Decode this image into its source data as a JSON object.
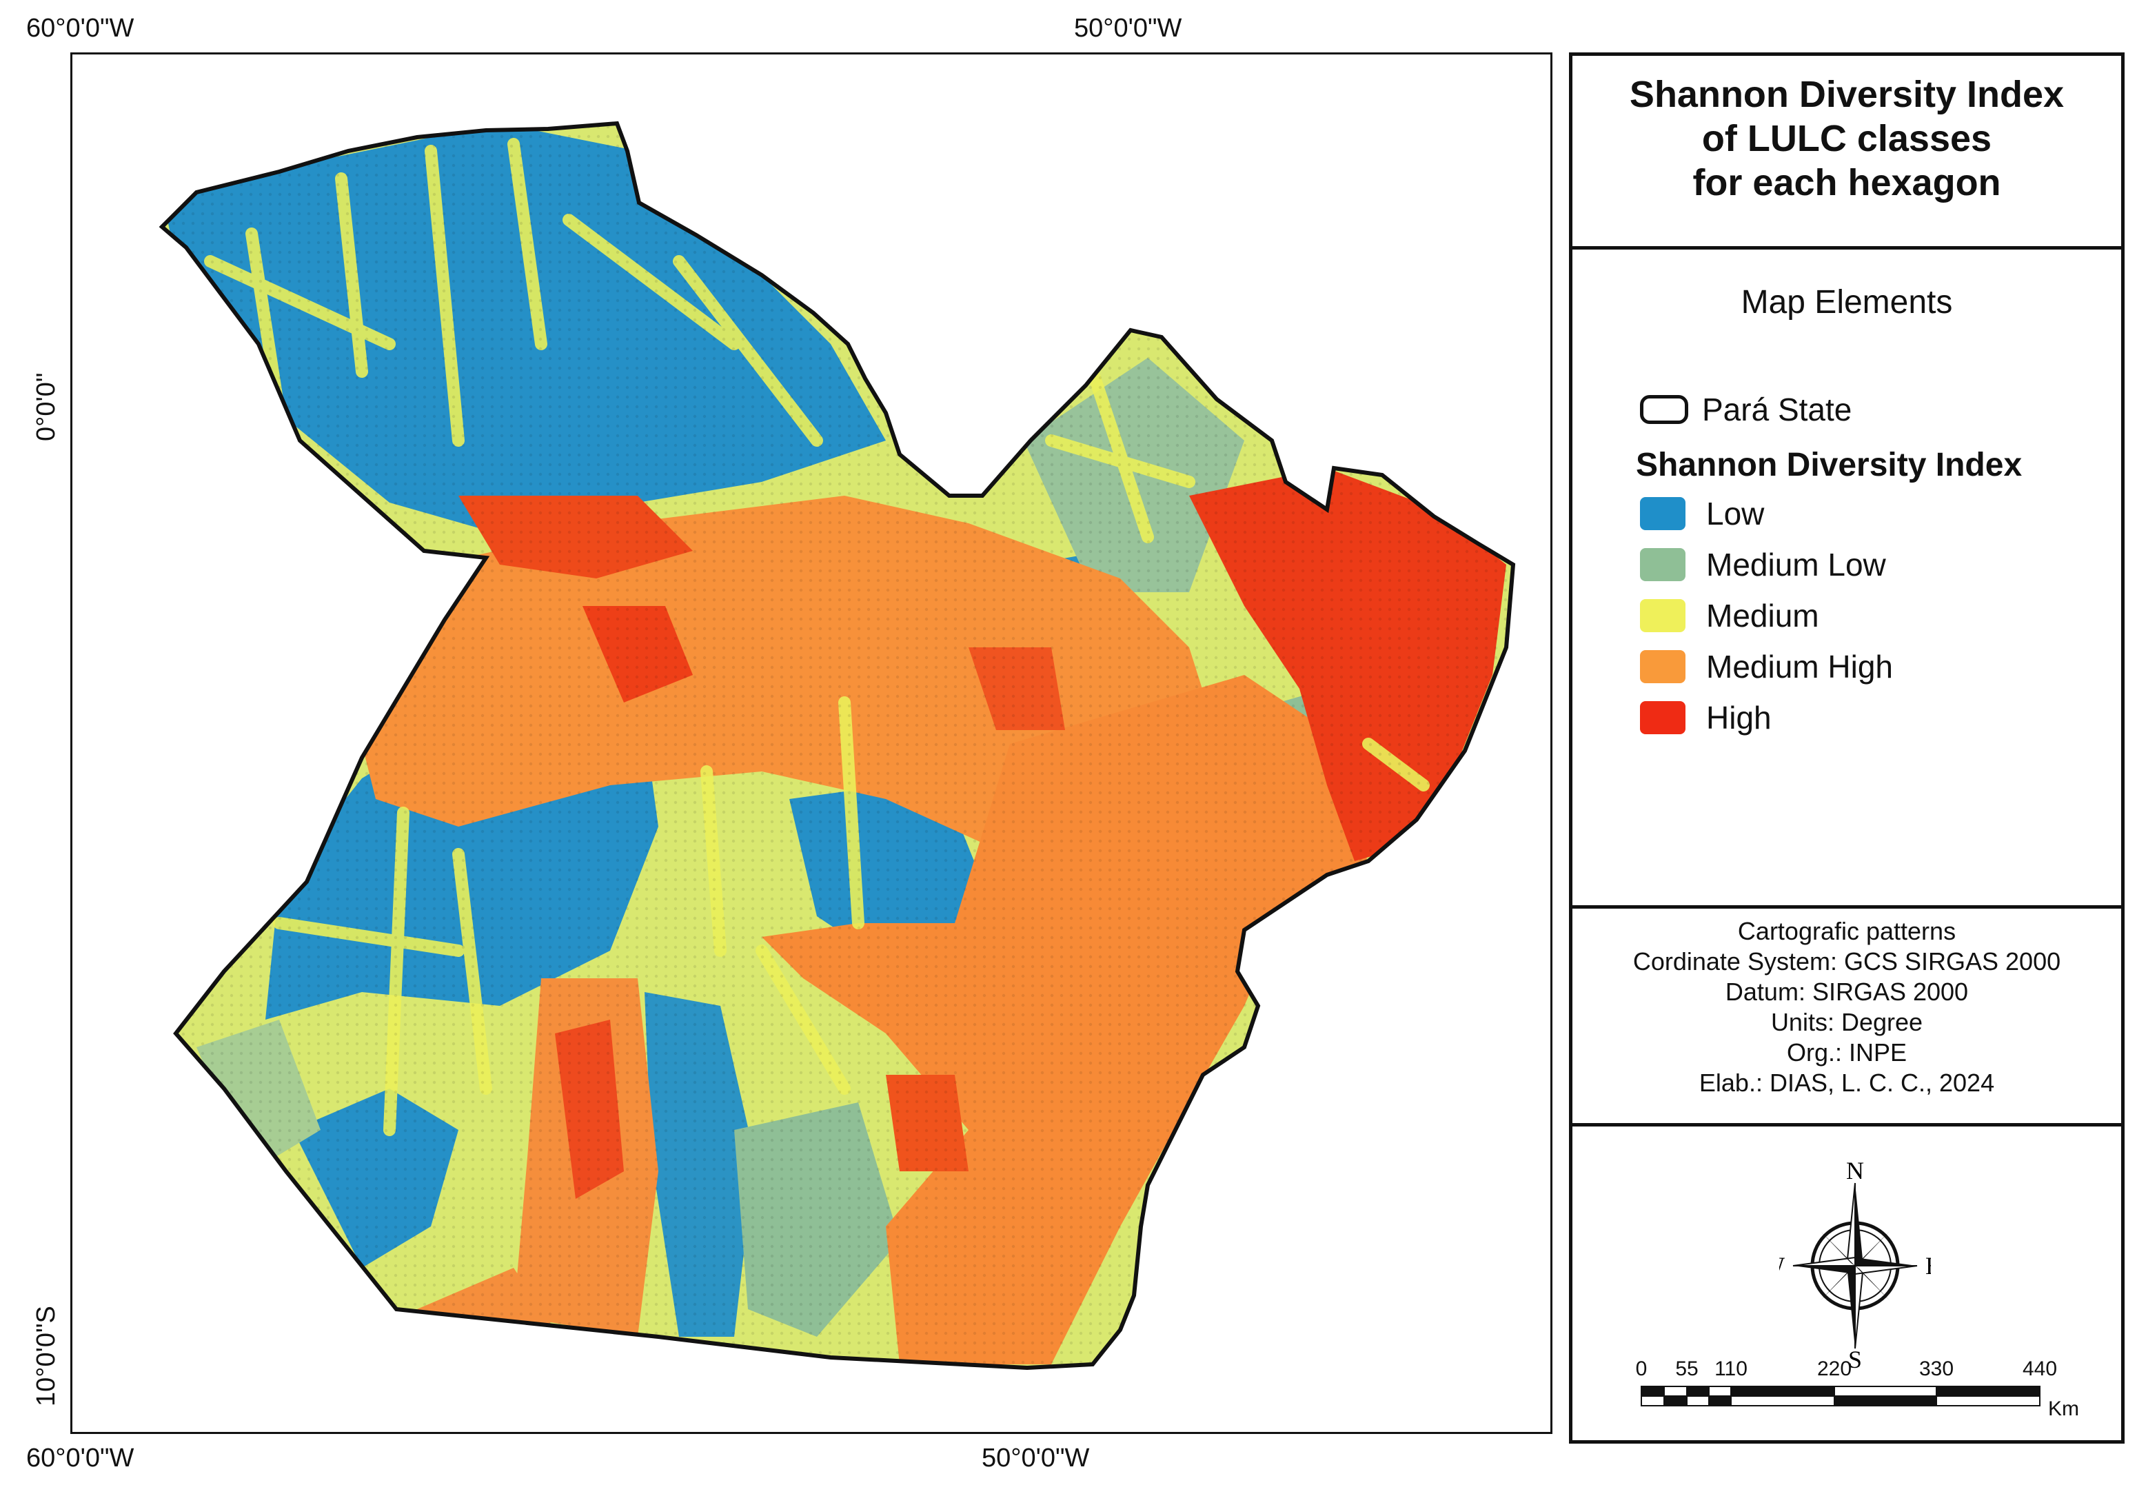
{
  "coordinates": {
    "top_left": "60°0'0\"W",
    "top_center": "50°0'0\"W",
    "bottom_left": "60°0'0\"W",
    "bottom_center": "50°0'0\"W",
    "left_upper": "0°0'0\"",
    "left_lower": "10°0'0\"S"
  },
  "panel": {
    "title_line1": "Shannon Diversity Index",
    "title_line2": "of LULC classes",
    "title_line3": "for each hexagon",
    "elements_heading": "Map Elements",
    "boundary_label": "Pará State",
    "index_heading": "Shannon Diversity Index",
    "classes": [
      {
        "label": "Low",
        "color": "#1f8fc9"
      },
      {
        "label": "Medium Low",
        "color": "#8fbf96"
      },
      {
        "label": "Medium",
        "color": "#eff05a"
      },
      {
        "label": "Medium High",
        "color": "#f99a3a"
      },
      {
        "label": "High",
        "color": "#ef2b14"
      }
    ],
    "cartographic": {
      "heading": "Cartografic patterns",
      "coordinate_system": "Cordinate System: GCS SIRGAS 2000",
      "datum": "Datum: SIRGAS 2000",
      "units": "Units: Degree",
      "org": "Org.: INPE",
      "elab": "Elab.: DIAS, L. C. C., 2024"
    },
    "compass": {
      "n": "N",
      "s": "S",
      "e": "E",
      "w": "W"
    },
    "scale": {
      "ticks": [
        "0",
        "55",
        "110",
        "220",
        "330",
        "440"
      ],
      "unit": "Km"
    }
  }
}
